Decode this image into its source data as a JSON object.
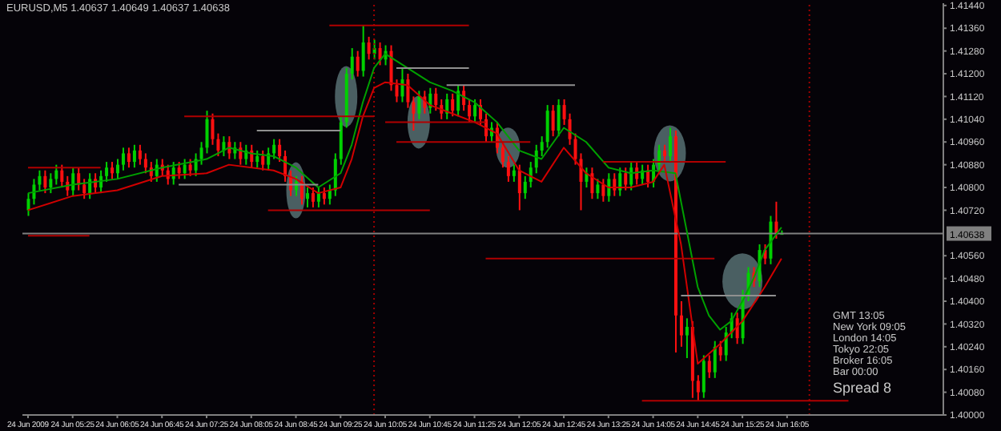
{
  "chart_data": {
    "type": "candlestick",
    "title": "EURUSD,M5 1.40637 1.40649 1.40637 1.40638",
    "x": [
      "2009-06-24T04:45",
      "2009-06-24T04:50",
      "2009-06-24T04:55",
      "2009-06-24T05:00",
      "2009-06-24T05:05",
      "2009-06-24T05:10",
      "2009-06-24T05:15",
      "2009-06-24T05:20",
      "2009-06-24T05:25",
      "2009-06-24T05:30",
      "2009-06-24T05:35",
      "2009-06-24T05:40",
      "2009-06-24T05:45",
      "2009-06-24T05:50",
      "2009-06-24T05:55",
      "2009-06-24T06:00",
      "2009-06-24T06:05",
      "2009-06-24T06:10",
      "2009-06-24T06:15",
      "2009-06-24T06:20",
      "2009-06-24T06:25",
      "2009-06-24T06:30",
      "2009-06-24T06:35",
      "2009-06-24T06:40",
      "2009-06-24T06:45",
      "2009-06-24T06:50",
      "2009-06-24T06:55",
      "2009-06-24T07:00",
      "2009-06-24T07:05",
      "2009-06-24T07:10",
      "2009-06-24T07:15",
      "2009-06-24T07:20",
      "2009-06-24T07:25",
      "2009-06-24T07:30",
      "2009-06-24T07:35",
      "2009-06-24T07:40",
      "2009-06-24T07:45",
      "2009-06-24T07:50",
      "2009-06-24T07:55",
      "2009-06-24T08:00",
      "2009-06-24T08:05",
      "2009-06-24T08:10",
      "2009-06-24T08:15",
      "2009-06-24T08:20",
      "2009-06-24T08:25",
      "2009-06-24T08:30",
      "2009-06-24T08:35",
      "2009-06-24T08:40",
      "2009-06-24T08:45",
      "2009-06-24T08:50",
      "2009-06-24T08:55",
      "2009-06-24T09:00",
      "2009-06-24T09:05",
      "2009-06-24T09:10",
      "2009-06-24T09:15",
      "2009-06-24T09:20",
      "2009-06-24T09:25",
      "2009-06-24T09:30",
      "2009-06-24T09:35",
      "2009-06-24T09:40",
      "2009-06-24T09:45",
      "2009-06-24T09:50",
      "2009-06-24T09:55",
      "2009-06-24T10:00",
      "2009-06-24T10:05",
      "2009-06-24T10:10",
      "2009-06-24T10:15",
      "2009-06-24T10:20",
      "2009-06-24T10:25",
      "2009-06-24T10:30",
      "2009-06-24T10:35",
      "2009-06-24T10:40",
      "2009-06-24T10:45",
      "2009-06-24T10:50",
      "2009-06-24T10:55",
      "2009-06-24T11:00",
      "2009-06-24T11:05",
      "2009-06-24T11:10",
      "2009-06-24T11:15",
      "2009-06-24T11:20",
      "2009-06-24T11:25",
      "2009-06-24T11:30",
      "2009-06-24T11:35",
      "2009-06-24T11:40",
      "2009-06-24T11:45",
      "2009-06-24T11:50",
      "2009-06-24T11:55",
      "2009-06-24T12:00",
      "2009-06-24T12:05",
      "2009-06-24T12:10",
      "2009-06-24T12:15",
      "2009-06-24T12:20",
      "2009-06-24T12:25",
      "2009-06-24T12:30",
      "2009-06-24T12:35",
      "2009-06-24T12:40",
      "2009-06-24T12:45",
      "2009-06-24T12:50",
      "2009-06-24T12:55",
      "2009-06-24T13:00",
      "2009-06-24T13:05",
      "2009-06-24T13:10",
      "2009-06-24T13:15",
      "2009-06-24T13:20",
      "2009-06-24T13:25",
      "2009-06-24T13:30",
      "2009-06-24T13:35",
      "2009-06-24T13:40",
      "2009-06-24T13:45",
      "2009-06-24T13:50",
      "2009-06-24T13:55",
      "2009-06-24T14:00",
      "2009-06-24T14:05",
      "2009-06-24T14:10",
      "2009-06-24T14:15",
      "2009-06-24T14:20",
      "2009-06-24T14:25",
      "2009-06-24T14:30",
      "2009-06-24T14:35",
      "2009-06-24T14:40",
      "2009-06-24T14:45",
      "2009-06-24T14:50",
      "2009-06-24T14:55",
      "2009-06-24T15:00",
      "2009-06-24T15:05",
      "2009-06-24T15:10",
      "2009-06-24T15:15",
      "2009-06-24T15:20",
      "2009-06-24T15:25",
      "2009-06-24T15:30",
      "2009-06-24T15:35",
      "2009-06-24T15:40",
      "2009-06-24T15:45",
      "2009-06-24T15:50",
      "2009-06-24T15:55",
      "2009-06-24T16:00"
    ],
    "ohlc": [
      [
        1.4072,
        1.4078,
        1.407,
        1.4076
      ],
      [
        1.4076,
        1.4083,
        1.4074,
        1.4081
      ],
      [
        1.4081,
        1.4086,
        1.4079,
        1.4084
      ],
      [
        1.4084,
        1.4086,
        1.4078,
        1.408
      ],
      [
        1.408,
        1.4085,
        1.4078,
        1.4083
      ],
      [
        1.4083,
        1.4088,
        1.4081,
        1.4086
      ],
      [
        1.4086,
        1.4088,
        1.408,
        1.4082
      ],
      [
        1.4082,
        1.4084,
        1.4077,
        1.4079
      ],
      [
        1.4079,
        1.4087,
        1.4077,
        1.4085
      ],
      [
        1.4085,
        1.4087,
        1.4079,
        1.4081
      ],
      [
        1.4081,
        1.4083,
        1.4076,
        1.4078
      ],
      [
        1.4078,
        1.4085,
        1.4076,
        1.4083
      ],
      [
        1.4083,
        1.4085,
        1.4078,
        1.408
      ],
      [
        1.408,
        1.4086,
        1.4078,
        1.4084
      ],
      [
        1.4084,
        1.4089,
        1.4082,
        1.4087
      ],
      [
        1.4087,
        1.4089,
        1.4083,
        1.4085
      ],
      [
        1.4085,
        1.409,
        1.4083,
        1.4088
      ],
      [
        1.4088,
        1.4094,
        1.4086,
        1.4092
      ],
      [
        1.4092,
        1.4094,
        1.4087,
        1.4089
      ],
      [
        1.4089,
        1.4095,
        1.4087,
        1.4093
      ],
      [
        1.4093,
        1.4095,
        1.4088,
        1.409
      ],
      [
        1.409,
        1.4092,
        1.4085,
        1.4087
      ],
      [
        1.4087,
        1.4089,
        1.4082,
        1.4084
      ],
      [
        1.4084,
        1.409,
        1.4082,
        1.4088
      ],
      [
        1.4088,
        1.409,
        1.4084,
        1.4086
      ],
      [
        1.4086,
        1.4088,
        1.4081,
        1.4083
      ],
      [
        1.4083,
        1.4089,
        1.4081,
        1.4087
      ],
      [
        1.4087,
        1.4089,
        1.4083,
        1.4085
      ],
      [
        1.4085,
        1.409,
        1.4083,
        1.4088
      ],
      [
        1.4088,
        1.409,
        1.4084,
        1.4086
      ],
      [
        1.4086,
        1.4092,
        1.4084,
        1.409
      ],
      [
        1.409,
        1.4096,
        1.4088,
        1.4094
      ],
      [
        1.4094,
        1.4107,
        1.4092,
        1.4104
      ],
      [
        1.4104,
        1.4106,
        1.4095,
        1.4097
      ],
      [
        1.4097,
        1.4099,
        1.4091,
        1.4093
      ],
      [
        1.4093,
        1.4098,
        1.4091,
        1.4096
      ],
      [
        1.4096,
        1.4098,
        1.409,
        1.4092
      ],
      [
        1.4092,
        1.4096,
        1.409,
        1.4094
      ],
      [
        1.4094,
        1.4096,
        1.4088,
        1.409
      ],
      [
        1.409,
        1.4095,
        1.4088,
        1.4093
      ],
      [
        1.4093,
        1.4095,
        1.4087,
        1.4089
      ],
      [
        1.4089,
        1.4093,
        1.4087,
        1.4091
      ],
      [
        1.4091,
        1.4093,
        1.4086,
        1.4088
      ],
      [
        1.4088,
        1.4094,
        1.4086,
        1.4092
      ],
      [
        1.4092,
        1.4097,
        1.409,
        1.4095
      ],
      [
        1.4095,
        1.4097,
        1.4089,
        1.4091
      ],
      [
        1.4091,
        1.4093,
        1.4082,
        1.4084
      ],
      [
        1.4084,
        1.4086,
        1.4077,
        1.4079
      ],
      [
        1.4079,
        1.4084,
        1.4077,
        1.4082
      ],
      [
        1.4082,
        1.4084,
        1.4074,
        1.4076
      ],
      [
        1.4076,
        1.408,
        1.4073,
        1.4078
      ],
      [
        1.4078,
        1.408,
        1.4073,
        1.4075
      ],
      [
        1.4075,
        1.408,
        1.4073,
        1.4078
      ],
      [
        1.4078,
        1.408,
        1.4074,
        1.4076
      ],
      [
        1.4076,
        1.4081,
        1.4074,
        1.4079
      ],
      [
        1.4079,
        1.4092,
        1.4077,
        1.409
      ],
      [
        1.409,
        1.4105,
        1.4088,
        1.4103
      ],
      [
        1.4103,
        1.4122,
        1.4101,
        1.412
      ],
      [
        1.412,
        1.4129,
        1.4118,
        1.4126
      ],
      [
        1.4126,
        1.4128,
        1.4119,
        1.4121
      ],
      [
        1.4121,
        1.4137,
        1.4119,
        1.4131
      ],
      [
        1.4131,
        1.4133,
        1.4125,
        1.4127
      ],
      [
        1.4127,
        1.4132,
        1.4125,
        1.4129
      ],
      [
        1.4129,
        1.4131,
        1.4123,
        1.4125
      ],
      [
        1.4125,
        1.413,
        1.4123,
        1.4128
      ],
      [
        1.4128,
        1.413,
        1.4114,
        1.4116
      ],
      [
        1.4116,
        1.4118,
        1.411,
        1.4112
      ],
      [
        1.4112,
        1.4122,
        1.411,
        1.4118
      ],
      [
        1.4118,
        1.412,
        1.4108,
        1.411
      ],
      [
        1.411,
        1.4112,
        1.41,
        1.4106
      ],
      [
        1.4106,
        1.4114,
        1.4104,
        1.4112
      ],
      [
        1.4112,
        1.4114,
        1.4106,
        1.4108
      ],
      [
        1.4108,
        1.4115,
        1.4106,
        1.4113
      ],
      [
        1.4113,
        1.4115,
        1.4107,
        1.4109
      ],
      [
        1.4109,
        1.4111,
        1.4104,
        1.4106
      ],
      [
        1.4106,
        1.4113,
        1.4104,
        1.4111
      ],
      [
        1.4111,
        1.4113,
        1.4105,
        1.4107
      ],
      [
        1.4107,
        1.4116,
        1.4105,
        1.4114
      ],
      [
        1.4114,
        1.4116,
        1.4107,
        1.4109
      ],
      [
        1.4109,
        1.4111,
        1.4103,
        1.4105
      ],
      [
        1.4105,
        1.4111,
        1.4103,
        1.4109
      ],
      [
        1.4109,
        1.4111,
        1.4102,
        1.4104
      ],
      [
        1.4104,
        1.4106,
        1.4096,
        1.4098
      ],
      [
        1.4098,
        1.4103,
        1.4096,
        1.4101
      ],
      [
        1.4101,
        1.4103,
        1.4092,
        1.4094
      ],
      [
        1.4094,
        1.4096,
        1.4087,
        1.4089
      ],
      [
        1.4089,
        1.4091,
        1.4082,
        1.4084
      ],
      [
        1.4084,
        1.4088,
        1.4082,
        1.4086
      ],
      [
        1.4086,
        1.4088,
        1.4072,
        1.4078
      ],
      [
        1.4078,
        1.4084,
        1.4076,
        1.4082
      ],
      [
        1.4082,
        1.4089,
        1.408,
        1.4087
      ],
      [
        1.4087,
        1.4095,
        1.4085,
        1.4093
      ],
      [
        1.4093,
        1.4098,
        1.4091,
        1.4096
      ],
      [
        1.4096,
        1.4109,
        1.4094,
        1.4107
      ],
      [
        1.4107,
        1.4109,
        1.4098,
        1.41
      ],
      [
        1.41,
        1.4111,
        1.4098,
        1.4109
      ],
      [
        1.4109,
        1.4111,
        1.4102,
        1.4104
      ],
      [
        1.4104,
        1.4106,
        1.4095,
        1.4097
      ],
      [
        1.4097,
        1.4099,
        1.4088,
        1.409
      ],
      [
        1.409,
        1.4092,
        1.4072,
        1.4082
      ],
      [
        1.4082,
        1.4087,
        1.408,
        1.4085
      ],
      [
        1.4085,
        1.4087,
        1.4076,
        1.4078
      ],
      [
        1.4078,
        1.4083,
        1.4076,
        1.4081
      ],
      [
        1.4081,
        1.4083,
        1.4075,
        1.4077
      ],
      [
        1.4077,
        1.4085,
        1.4075,
        1.4083
      ],
      [
        1.4083,
        1.4085,
        1.4077,
        1.4079
      ],
      [
        1.4079,
        1.4087,
        1.4077,
        1.4085
      ],
      [
        1.4085,
        1.4087,
        1.4079,
        1.4081
      ],
      [
        1.4081,
        1.4089,
        1.4079,
        1.4087
      ],
      [
        1.4087,
        1.4089,
        1.4081,
        1.4083
      ],
      [
        1.4083,
        1.4088,
        1.4081,
        1.4086
      ],
      [
        1.4086,
        1.4088,
        1.408,
        1.4082
      ],
      [
        1.4082,
        1.409,
        1.408,
        1.4088
      ],
      [
        1.4088,
        1.4095,
        1.4086,
        1.4093
      ],
      [
        1.4093,
        1.4095,
        1.4089,
        1.4091
      ],
      [
        1.4091,
        1.4101,
        1.4089,
        1.4098
      ],
      [
        1.4098,
        1.41,
        1.4022,
        1.4035
      ],
      [
        1.4035,
        1.404,
        1.4024,
        1.4028
      ],
      [
        1.4028,
        1.4034,
        1.402,
        1.4031
      ],
      [
        1.4031,
        1.4033,
        1.4006,
        1.4012
      ],
      [
        1.4012,
        1.4014,
        1.4005,
        1.4008
      ],
      [
        1.4008,
        1.4021,
        1.4006,
        1.4019
      ],
      [
        1.4019,
        1.4021,
        1.4013,
        1.4015
      ],
      [
        1.4015,
        1.4026,
        1.4013,
        1.4024
      ],
      [
        1.4024,
        1.4026,
        1.4019,
        1.4021
      ],
      [
        1.4021,
        1.4031,
        1.4019,
        1.4029
      ],
      [
        1.4029,
        1.4036,
        1.4027,
        1.4034
      ],
      [
        1.4034,
        1.4036,
        1.4025,
        1.4027
      ],
      [
        1.4027,
        1.4044,
        1.4025,
        1.4042
      ],
      [
        1.4042,
        1.4052,
        1.404,
        1.405
      ],
      [
        1.405,
        1.4052,
        1.4045,
        1.4047
      ],
      [
        1.4047,
        1.406,
        1.4045,
        1.4058
      ],
      [
        1.4058,
        1.406,
        1.4053,
        1.4055
      ],
      [
        1.4055,
        1.407,
        1.4053,
        1.4068
      ],
      [
        1.4068,
        1.4075,
        1.4062,
        1.4064
      ],
      [
        1.40637,
        1.40649,
        1.40637,
        1.40638
      ]
    ],
    "series": [
      {
        "type": "line",
        "color": "#00a000",
        "x": [
          "2009-06-24T04:45",
          "2009-06-24T05:25",
          "2009-06-24T06:05",
          "2009-06-24T06:45",
          "2009-06-24T07:25",
          "2009-06-24T07:45",
          "2009-06-24T08:05",
          "2009-06-24T08:25",
          "2009-06-24T08:45",
          "2009-06-24T09:05",
          "2009-06-24T09:25",
          "2009-06-24T09:35",
          "2009-06-24T09:45",
          "2009-06-24T09:55",
          "2009-06-24T10:05",
          "2009-06-24T10:25",
          "2009-06-24T10:45",
          "2009-06-24T11:05",
          "2009-06-24T11:25",
          "2009-06-24T11:45",
          "2009-06-24T12:05",
          "2009-06-24T12:25",
          "2009-06-24T12:45",
          "2009-06-24T13:05",
          "2009-06-24T13:25",
          "2009-06-24T13:45",
          "2009-06-24T14:05",
          "2009-06-24T14:25",
          "2009-06-24T14:35",
          "2009-06-24T14:45",
          "2009-06-24T14:55",
          "2009-06-24T15:05",
          "2009-06-24T15:15",
          "2009-06-24T15:25",
          "2009-06-24T15:35",
          "2009-06-24T15:45",
          "2009-06-24T16:00"
        ],
        "values": [
          1.4078,
          1.4081,
          1.4083,
          1.4087,
          1.409,
          1.4094,
          1.4092,
          1.4091,
          1.4087,
          1.408,
          1.4085,
          1.4095,
          1.411,
          1.4122,
          1.4127,
          1.4122,
          1.4117,
          1.4114,
          1.411,
          1.4103,
          1.4093,
          1.409,
          1.4101,
          1.4096,
          1.4087,
          1.4085,
          1.4086,
          1.4085,
          1.4065,
          1.4045,
          1.4035,
          1.403,
          1.4033,
          1.404,
          1.4048,
          1.4058,
          1.4066
        ]
      },
      {
        "type": "line",
        "color": "#d00000",
        "x": [
          "2009-06-24T04:45",
          "2009-06-24T05:25",
          "2009-06-24T06:05",
          "2009-06-24T06:45",
          "2009-06-24T07:25",
          "2009-06-24T07:45",
          "2009-06-24T08:25",
          "2009-06-24T08:45",
          "2009-06-24T09:05",
          "2009-06-24T09:25",
          "2009-06-24T09:35",
          "2009-06-24T09:45",
          "2009-06-24T09:55",
          "2009-06-24T10:05",
          "2009-06-24T10:25",
          "2009-06-24T10:45",
          "2009-06-24T11:05",
          "2009-06-24T11:25",
          "2009-06-24T11:45",
          "2009-06-24T12:05",
          "2009-06-24T12:25",
          "2009-06-24T12:45",
          "2009-06-24T13:05",
          "2009-06-24T13:25",
          "2009-06-24T13:45",
          "2009-06-24T14:05",
          "2009-06-24T14:15",
          "2009-06-24T14:30",
          "2009-06-24T14:45",
          "2009-06-24T15:05",
          "2009-06-24T15:25",
          "2009-06-24T15:45",
          "2009-06-24T16:00"
        ],
        "values": [
          1.4072,
          1.4077,
          1.4079,
          1.4084,
          1.4085,
          1.4088,
          1.4086,
          1.4083,
          1.4078,
          1.408,
          1.409,
          1.4105,
          1.4115,
          1.4117,
          1.4116,
          1.4109,
          1.4106,
          1.4103,
          1.4099,
          1.4086,
          1.4082,
          1.4094,
          1.4085,
          1.408,
          1.408,
          1.4082,
          1.4088,
          1.406,
          1.4018,
          1.4025,
          1.4033,
          1.4045,
          1.4055
        ]
      },
      {
        "type": "line",
        "color": "#b00000",
        "x": [
          "2009-06-24T09:15",
          "2009-06-24T11:20"
        ],
        "values": [
          1.4137,
          1.4137
        ]
      },
      {
        "type": "line",
        "color": "#909090",
        "x": [
          "2009-06-24T10:15",
          "2009-06-24T11:20"
        ],
        "values": [
          1.4122,
          1.4122
        ]
      },
      {
        "type": "line",
        "color": "#909090",
        "x": [
          "2009-06-24T11:00",
          "2009-06-24T12:55"
        ],
        "values": [
          1.4116,
          1.4116
        ]
      },
      {
        "type": "line",
        "color": "#b00000",
        "x": [
          "2009-06-24T07:05",
          "2009-06-24T09:55"
        ],
        "values": [
          1.4105,
          1.4105
        ]
      },
      {
        "type": "line",
        "color": "#909090",
        "x": [
          "2009-06-24T08:10",
          "2009-06-24T09:25"
        ],
        "values": [
          1.41,
          1.41
        ]
      },
      {
        "type": "line",
        "color": "#b00000",
        "x": [
          "2009-06-24T10:05",
          "2009-06-24T11:35"
        ],
        "values": [
          1.4103,
          1.4103
        ]
      },
      {
        "type": "line",
        "color": "#b00000",
        "x": [
          "2009-06-24T10:15",
          "2009-06-24T12:15"
        ],
        "values": [
          1.4096,
          1.4096
        ]
      },
      {
        "type": "line",
        "color": "#909090",
        "x": [
          "2009-06-24T07:00",
          "2009-06-24T09:05"
        ],
        "values": [
          1.4081,
          1.4081
        ]
      },
      {
        "type": "line",
        "color": "#b00000",
        "x": [
          "2009-06-24T08:20",
          "2009-06-24T10:45"
        ],
        "values": [
          1.4072,
          1.4072
        ]
      },
      {
        "type": "line",
        "color": "#b00000",
        "x": [
          "2009-06-24T04:45",
          "2009-06-24T05:50"
        ],
        "values": [
          1.4087,
          1.4087
        ]
      },
      {
        "type": "line",
        "color": "#b00000",
        "x": [
          "2009-06-24T04:45",
          "2009-06-24T05:40"
        ],
        "values": [
          1.4063,
          1.4063
        ]
      },
      {
        "type": "line",
        "color": "#b00000",
        "x": [
          "2009-06-24T13:20",
          "2009-06-24T15:10"
        ],
        "values": [
          1.4089,
          1.4089
        ]
      },
      {
        "type": "line",
        "color": "#b00000",
        "x": [
          "2009-06-24T11:35",
          "2009-06-24T15:00"
        ],
        "values": [
          1.4055,
          1.4055
        ]
      },
      {
        "type": "line",
        "color": "#909090",
        "x": [
          "2009-06-24T14:30",
          "2009-06-24T15:55"
        ],
        "values": [
          1.4042,
          1.4042
        ]
      },
      {
        "type": "line",
        "color": "#b00000",
        "x": [
          "2009-06-24T13:55",
          "2009-06-24T17:00"
        ],
        "values": [
          1.4005,
          1.4005
        ]
      }
    ],
    "xlim": [
      "2009-06-24T04:40",
      "2009-06-24T18:25"
    ],
    "xticks": [
      {
        "value": "2009-06-24T04:45",
        "label": "24 Jun 2009"
      },
      {
        "value": "2009-06-24T05:25",
        "label": "24 Jun 05:25"
      },
      {
        "value": "2009-06-24T06:05",
        "label": "24 Jun 06:05"
      },
      {
        "value": "2009-06-24T06:45",
        "label": "24 Jun 06:45"
      },
      {
        "value": "2009-06-24T07:25",
        "label": "24 Jun 07:25"
      },
      {
        "value": "2009-06-24T08:05",
        "label": "24 Jun 08:05"
      },
      {
        "value": "2009-06-24T08:45",
        "label": "24 Jun 08:45"
      },
      {
        "value": "2009-06-24T09:25",
        "label": "24 Jun 09:25"
      },
      {
        "value": "2009-06-24T10:05",
        "label": "24 Jun 10:05"
      },
      {
        "value": "2009-06-24T10:45",
        "label": "24 Jun 10:45"
      },
      {
        "value": "2009-06-24T11:25",
        "label": "24 Jun 11:25"
      },
      {
        "value": "2009-06-24T12:05",
        "label": "24 Jun 12:05"
      },
      {
        "value": "2009-06-24T12:45",
        "label": "24 Jun 12:45"
      },
      {
        "value": "2009-06-24T13:25",
        "label": "24 Jun 13:25"
      },
      {
        "value": "2009-06-24T14:05",
        "label": "24 Jun 14:05"
      },
      {
        "value": "2009-06-24T14:45",
        "label": "24 Jun 14:45"
      },
      {
        "value": "2009-06-24T15:25",
        "label": "24 Jun 15:25"
      },
      {
        "value": "2009-06-24T16:05",
        "label": "24 Jun 16:05"
      }
    ],
    "ylim": [
      1.4,
      1.41448
    ],
    "yticks": [
      {
        "value": 1.4144,
        "label": "1.41440"
      },
      {
        "value": 1.4136,
        "label": "1.41360"
      },
      {
        "value": 1.4128,
        "label": "1.41280"
      },
      {
        "value": 1.412,
        "label": "1.41200"
      },
      {
        "value": 1.4112,
        "label": "1.41120"
      },
      {
        "value": 1.4104,
        "label": "1.41040"
      },
      {
        "value": 1.4096,
        "label": "1.40960"
      },
      {
        "value": 1.4088,
        "label": "1.40880"
      },
      {
        "value": 1.408,
        "label": "1.40800"
      },
      {
        "value": 1.4072,
        "label": "1.40720"
      },
      {
        "value": 1.4056,
        "label": "1.40560"
      },
      {
        "value": 1.4048,
        "label": "1.40480"
      },
      {
        "value": 1.404,
        "label": "1.40400"
      },
      {
        "value": 1.4032,
        "label": "1.40320"
      },
      {
        "value": 1.4024,
        "label": "1.40240"
      },
      {
        "value": 1.4016,
        "label": "1.40160"
      },
      {
        "value": 1.4008,
        "label": "1.40080"
      },
      {
        "value": 1.4,
        "label": "1.40000"
      }
    ],
    "ref_lines": [
      {
        "axis": "x",
        "value": "2009-06-24T09:55",
        "color": "#a00000",
        "line_style": "dotted"
      },
      {
        "axis": "x",
        "value": "2009-06-24T16:25",
        "color": "#a00000",
        "line_style": "dotted"
      },
      {
        "axis": "y",
        "value": 1.40638,
        "label": "1.40638",
        "color": "#808080",
        "line_style": "solid"
      }
    ],
    "annotations": [
      "GMT 13:05",
      "New York 09:05",
      "London 14:05",
      "Tokyo 22:05",
      "Broker 16:05",
      "Bar 00:00",
      "Spread 8"
    ],
    "legend": false,
    "grid": false
  }
}
